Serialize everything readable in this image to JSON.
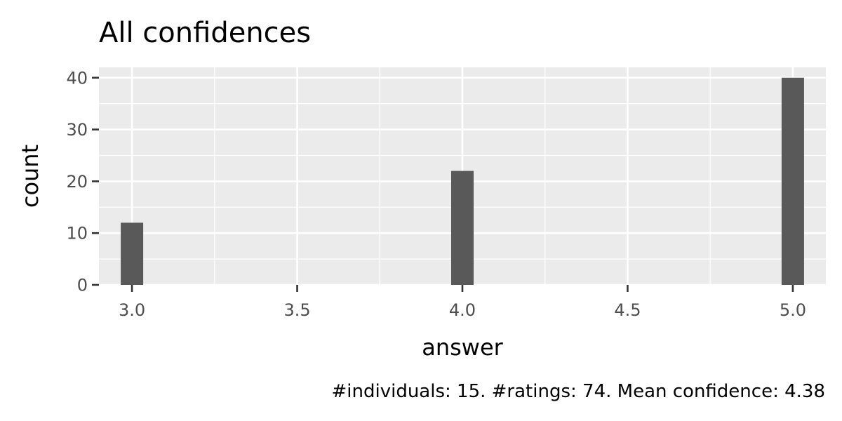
{
  "chart_data": {
    "type": "bar",
    "title": "All confidences",
    "xlabel": "answer",
    "ylabel": "count",
    "caption": "#individuals: 15. #ratings: 74. Mean confidence: 4.38",
    "x": [
      3.0,
      4.0,
      5.0
    ],
    "values": [
      12,
      22,
      40
    ],
    "xlim": [
      2.9,
      5.1
    ],
    "ylim": [
      0,
      42
    ],
    "x_ticks": [
      "3.0",
      "3.5",
      "4.0",
      "4.5",
      "5.0"
    ],
    "y_ticks": [
      "0",
      "10",
      "20",
      "30",
      "40"
    ],
    "grid": true,
    "colors": {
      "bar": "#595959",
      "panel": "#ebebeb",
      "grid": "#ffffff",
      "ticks": "#333333"
    }
  }
}
